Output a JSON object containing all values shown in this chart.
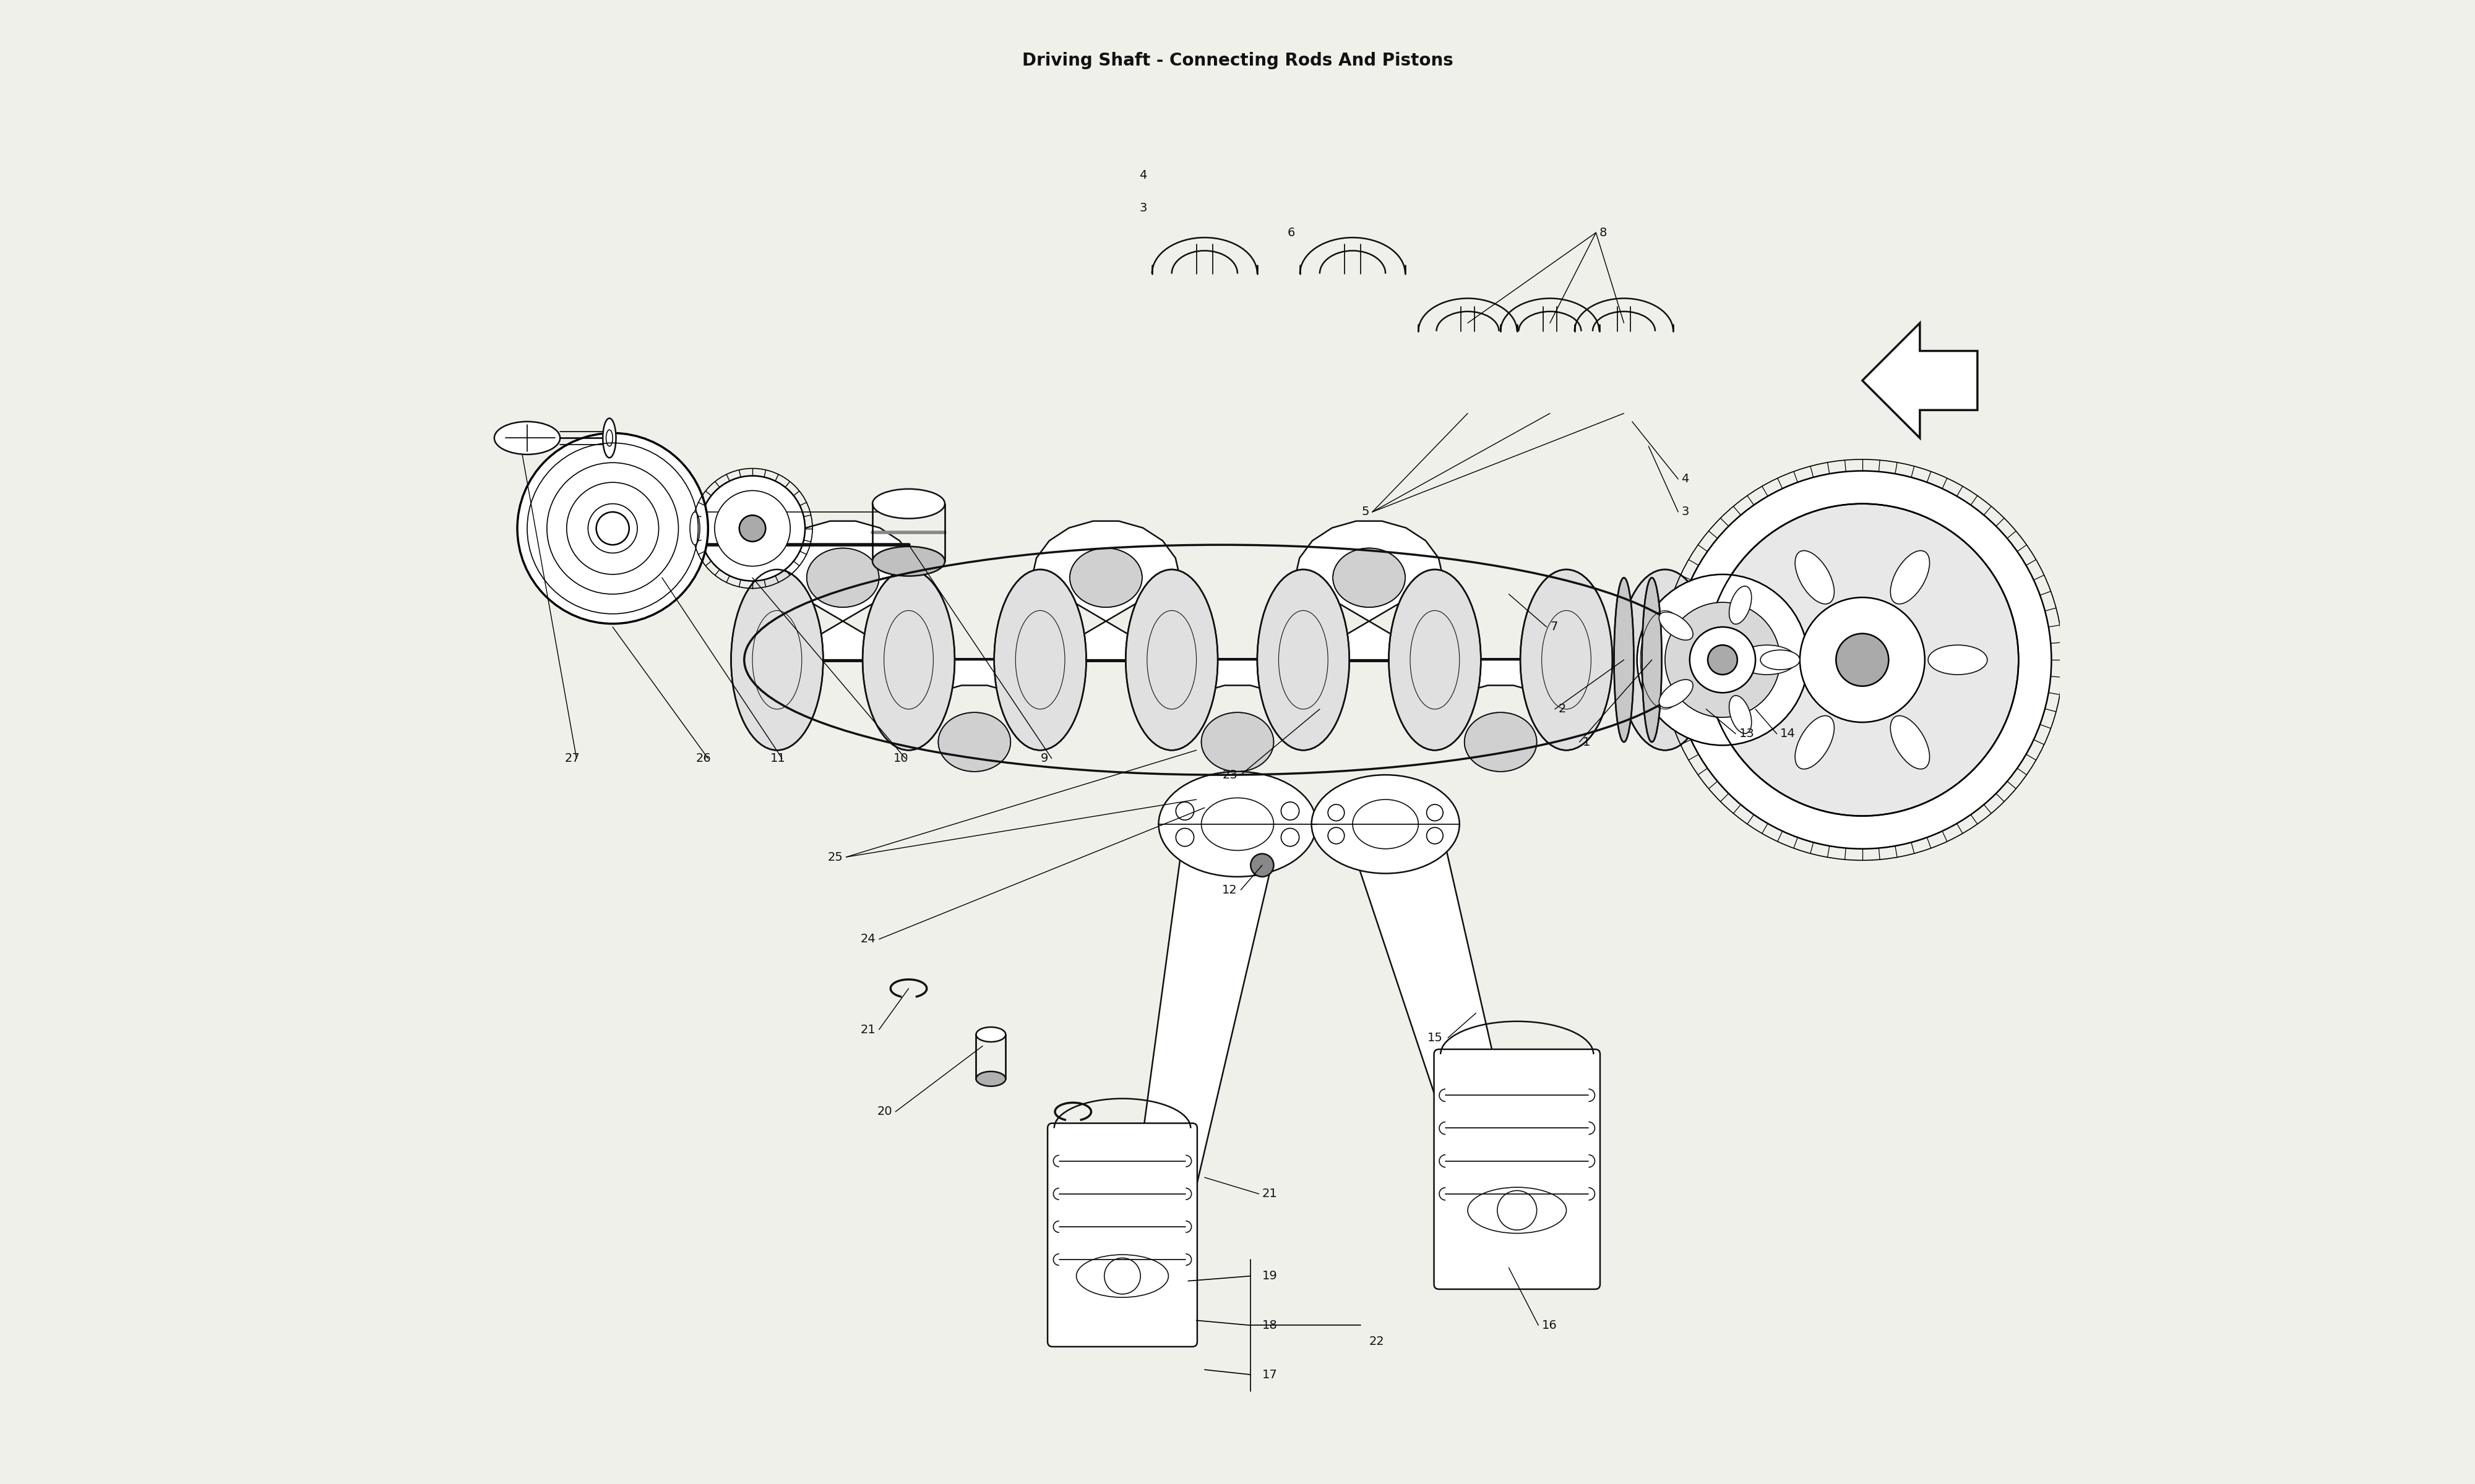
{
  "title": "Driving Shaft - Connecting Rods And Pistons",
  "background_color": "#f0f0eb",
  "line_color": "#111111",
  "fig_width": 40.0,
  "fig_height": 24.0,
  "font_size": 14,
  "title_font_size": 20
}
